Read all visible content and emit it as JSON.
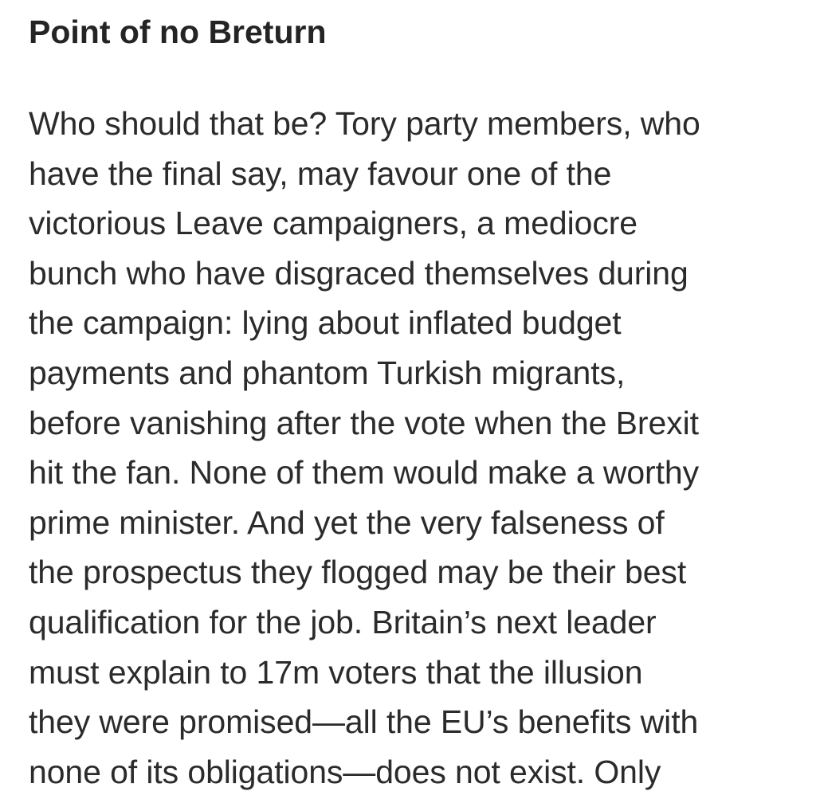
{
  "article": {
    "heading": "Point of no Breturn",
    "lines": [
      "Who should that be? Tory party members, who",
      "have the final say, may favour one of the",
      "victorious Leave campaigners, a mediocre",
      "bunch who have disgraced themselves during",
      "the campaign: lying about inflated budget",
      "payments and phantom Turkish migrants,",
      "before vanishing after the vote when the Brexit",
      "hit the fan. None of them would make a worthy",
      "prime minister. And yet the very falseness of",
      "the prospectus they flogged may be their best",
      "qualification for the job. Britain’s next leader",
      "must explain to 17m voters that the illusion",
      "they were promised—all the EU’s benefits with",
      "none of its obligations—does not exist. Only"
    ]
  }
}
